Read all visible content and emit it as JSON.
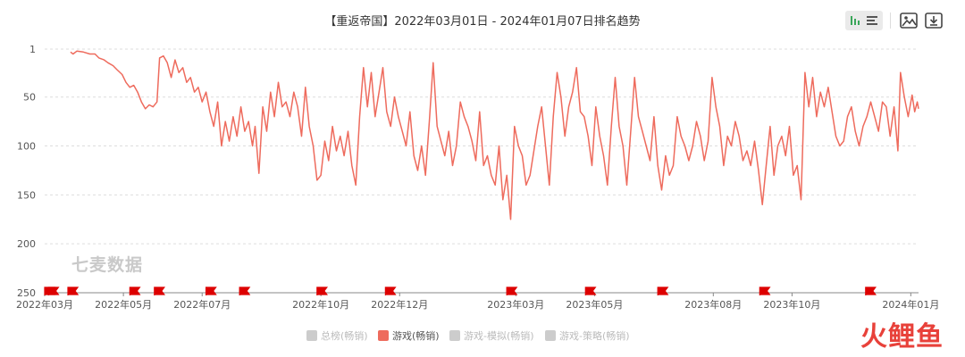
{
  "toolbar": {
    "bar_line_toggle": "chart-type-toggle-icon",
    "save_image": "image-icon",
    "download": "download-icon"
  },
  "watermark": "七麦数据",
  "brand": {
    "part1": "火",
    "part2": "鲤鱼"
  },
  "legend": [
    {
      "label": "总榜(畅销)",
      "active": false
    },
    {
      "label": "游戏(畅销)",
      "active": true
    },
    {
      "label": "游戏-模拟(畅销)",
      "active": false
    },
    {
      "label": "游戏-策略(畅销)",
      "active": false
    }
  ],
  "colors": {
    "series": "#ee6b5d",
    "event_flag": "#dd0000",
    "grid": "#dddddd",
    "axis": "#666666"
  },
  "chart_data": {
    "type": "line",
    "title": "【重返帝国】2022年03月01日 - 2024年01月07日排名趋势",
    "x_start": "2022-03-01",
    "x_end": "2024-01-07",
    "y_reversed": true,
    "ylim": [
      1,
      250
    ],
    "yticks": [
      1,
      50,
      100,
      150,
      200,
      250
    ],
    "xticks": [
      {
        "date": "2022-03-01",
        "label": "2022年03月"
      },
      {
        "date": "2022-05-01",
        "label": "2022年05月"
      },
      {
        "date": "2022-07-01",
        "label": "2022年07月"
      },
      {
        "date": "2022-10-01",
        "label": "2022年10月"
      },
      {
        "date": "2022-12-01",
        "label": "2022年12月"
      },
      {
        "date": "2023-03-01",
        "label": "2023年03月"
      },
      {
        "date": "2023-05-01",
        "label": "2023年05月"
      },
      {
        "date": "2023-08-01",
        "label": "2023年08月"
      },
      {
        "date": "2023-10-01",
        "label": "2023年10月"
      },
      {
        "date": "2024-01-01",
        "label": "2024年01月"
      }
    ],
    "grid": "horizontal-dashed",
    "event_flags": [
      "2022-03-01",
      "2022-03-04",
      "2022-03-19",
      "2022-05-06",
      "2022-05-25",
      "2022-07-04",
      "2022-07-30",
      "2022-09-28",
      "2022-11-20",
      "2023-02-22",
      "2023-04-24",
      "2023-06-19",
      "2023-09-06",
      "2023-11-27"
    ],
    "series": [
      {
        "name": "游戏(畅销)",
        "points": [
          [
            "2022-03-21",
            4
          ],
          [
            "2022-03-23",
            6
          ],
          [
            "2022-03-26",
            3
          ],
          [
            "2022-03-31",
            4
          ],
          [
            "2022-04-05",
            6
          ],
          [
            "2022-04-09",
            6
          ],
          [
            "2022-04-12",
            10
          ],
          [
            "2022-04-16",
            12
          ],
          [
            "2022-04-19",
            15
          ],
          [
            "2022-04-23",
            18
          ],
          [
            "2022-04-26",
            22
          ],
          [
            "2022-04-30",
            27
          ],
          [
            "2022-05-03",
            35
          ],
          [
            "2022-05-06",
            40
          ],
          [
            "2022-05-09",
            38
          ],
          [
            "2022-05-12",
            45
          ],
          [
            "2022-05-15",
            55
          ],
          [
            "2022-05-18",
            62
          ],
          [
            "2022-05-21",
            58
          ],
          [
            "2022-05-24",
            60
          ],
          [
            "2022-05-27",
            55
          ],
          [
            "2022-05-29",
            10
          ],
          [
            "2022-06-01",
            8
          ],
          [
            "2022-06-04",
            15
          ],
          [
            "2022-06-07",
            30
          ],
          [
            "2022-06-10",
            12
          ],
          [
            "2022-06-13",
            25
          ],
          [
            "2022-06-16",
            20
          ],
          [
            "2022-06-19",
            35
          ],
          [
            "2022-06-22",
            30
          ],
          [
            "2022-06-25",
            45
          ],
          [
            "2022-06-28",
            40
          ],
          [
            "2022-07-01",
            55
          ],
          [
            "2022-07-04",
            45
          ],
          [
            "2022-07-07",
            65
          ],
          [
            "2022-07-10",
            80
          ],
          [
            "2022-07-13",
            55
          ],
          [
            "2022-07-16",
            100
          ],
          [
            "2022-07-19",
            75
          ],
          [
            "2022-07-22",
            95
          ],
          [
            "2022-07-25",
            70
          ],
          [
            "2022-07-28",
            90
          ],
          [
            "2022-07-31",
            60
          ],
          [
            "2022-08-03",
            85
          ],
          [
            "2022-08-06",
            75
          ],
          [
            "2022-08-09",
            100
          ],
          [
            "2022-08-11",
            80
          ],
          [
            "2022-08-14",
            128
          ],
          [
            "2022-08-17",
            60
          ],
          [
            "2022-08-20",
            85
          ],
          [
            "2022-08-23",
            45
          ],
          [
            "2022-08-26",
            70
          ],
          [
            "2022-08-29",
            35
          ],
          [
            "2022-09-01",
            60
          ],
          [
            "2022-09-04",
            55
          ],
          [
            "2022-09-07",
            70
          ],
          [
            "2022-09-10",
            45
          ],
          [
            "2022-09-13",
            60
          ],
          [
            "2022-09-16",
            90
          ],
          [
            "2022-09-19",
            40
          ],
          [
            "2022-09-22",
            80
          ],
          [
            "2022-09-25",
            100
          ],
          [
            "2022-09-28",
            135
          ],
          [
            "2022-10-01",
            130
          ],
          [
            "2022-10-04",
            95
          ],
          [
            "2022-10-07",
            115
          ],
          [
            "2022-10-10",
            80
          ],
          [
            "2022-10-13",
            105
          ],
          [
            "2022-10-16",
            90
          ],
          [
            "2022-10-19",
            110
          ],
          [
            "2022-10-22",
            85
          ],
          [
            "2022-10-25",
            120
          ],
          [
            "2022-10-28",
            140
          ],
          [
            "2022-10-31",
            70
          ],
          [
            "2022-11-03",
            20
          ],
          [
            "2022-11-06",
            60
          ],
          [
            "2022-11-09",
            25
          ],
          [
            "2022-11-12",
            70
          ],
          [
            "2022-11-15",
            45
          ],
          [
            "2022-11-18",
            20
          ],
          [
            "2022-11-21",
            65
          ],
          [
            "2022-11-24",
            80
          ],
          [
            "2022-11-27",
            50
          ],
          [
            "2022-11-30",
            70
          ],
          [
            "2022-12-03",
            85
          ],
          [
            "2022-12-06",
            100
          ],
          [
            "2022-12-09",
            65
          ],
          [
            "2022-12-12",
            110
          ],
          [
            "2022-12-15",
            125
          ],
          [
            "2022-12-18",
            100
          ],
          [
            "2022-12-21",
            130
          ],
          [
            "2022-12-24",
            75
          ],
          [
            "2022-12-27",
            15
          ],
          [
            "2022-12-30",
            80
          ],
          [
            "2023-01-02",
            95
          ],
          [
            "2023-01-05",
            110
          ],
          [
            "2023-01-08",
            85
          ],
          [
            "2023-01-11",
            120
          ],
          [
            "2023-01-14",
            100
          ],
          [
            "2023-01-17",
            55
          ],
          [
            "2023-01-20",
            70
          ],
          [
            "2023-01-23",
            80
          ],
          [
            "2023-01-26",
            95
          ],
          [
            "2023-01-29",
            115
          ],
          [
            "2023-02-01",
            65
          ],
          [
            "2023-02-04",
            120
          ],
          [
            "2023-02-07",
            110
          ],
          [
            "2023-02-10",
            130
          ],
          [
            "2023-02-13",
            140
          ],
          [
            "2023-02-16",
            100
          ],
          [
            "2023-02-19",
            155
          ],
          [
            "2023-02-22",
            130
          ],
          [
            "2023-02-25",
            175
          ],
          [
            "2023-02-28",
            80
          ],
          [
            "2023-03-03",
            100
          ],
          [
            "2023-03-06",
            110
          ],
          [
            "2023-03-09",
            140
          ],
          [
            "2023-03-12",
            130
          ],
          [
            "2023-03-15",
            105
          ],
          [
            "2023-03-18",
            80
          ],
          [
            "2023-03-21",
            60
          ],
          [
            "2023-03-24",
            100
          ],
          [
            "2023-03-27",
            140
          ],
          [
            "2023-03-30",
            70
          ],
          [
            "2023-04-02",
            25
          ],
          [
            "2023-04-05",
            50
          ],
          [
            "2023-04-08",
            90
          ],
          [
            "2023-04-11",
            60
          ],
          [
            "2023-04-14",
            45
          ],
          [
            "2023-04-17",
            20
          ],
          [
            "2023-04-20",
            65
          ],
          [
            "2023-04-23",
            70
          ],
          [
            "2023-04-26",
            90
          ],
          [
            "2023-04-29",
            120
          ],
          [
            "2023-05-02",
            60
          ],
          [
            "2023-05-05",
            90
          ],
          [
            "2023-05-08",
            110
          ],
          [
            "2023-05-11",
            140
          ],
          [
            "2023-05-14",
            80
          ],
          [
            "2023-05-17",
            30
          ],
          [
            "2023-05-20",
            80
          ],
          [
            "2023-05-23",
            100
          ],
          [
            "2023-05-26",
            140
          ],
          [
            "2023-05-29",
            85
          ],
          [
            "2023-06-01",
            30
          ],
          [
            "2023-06-04",
            70
          ],
          [
            "2023-06-07",
            85
          ],
          [
            "2023-06-10",
            100
          ],
          [
            "2023-06-13",
            115
          ],
          [
            "2023-06-16",
            70
          ],
          [
            "2023-06-19",
            120
          ],
          [
            "2023-06-22",
            145
          ],
          [
            "2023-06-25",
            110
          ],
          [
            "2023-06-28",
            130
          ],
          [
            "2023-07-01",
            120
          ],
          [
            "2023-07-04",
            70
          ],
          [
            "2023-07-07",
            90
          ],
          [
            "2023-07-10",
            100
          ],
          [
            "2023-07-13",
            115
          ],
          [
            "2023-07-16",
            100
          ],
          [
            "2023-07-19",
            75
          ],
          [
            "2023-07-22",
            90
          ],
          [
            "2023-07-25",
            115
          ],
          [
            "2023-07-28",
            95
          ],
          [
            "2023-07-31",
            30
          ],
          [
            "2023-08-03",
            60
          ],
          [
            "2023-08-06",
            80
          ],
          [
            "2023-08-09",
            120
          ],
          [
            "2023-08-12",
            90
          ],
          [
            "2023-08-15",
            100
          ],
          [
            "2023-08-18",
            75
          ],
          [
            "2023-08-21",
            90
          ],
          [
            "2023-08-24",
            115
          ],
          [
            "2023-08-27",
            105
          ],
          [
            "2023-08-30",
            120
          ],
          [
            "2023-09-02",
            95
          ],
          [
            "2023-09-05",
            125
          ],
          [
            "2023-09-08",
            160
          ],
          [
            "2023-09-11",
            120
          ],
          [
            "2023-09-14",
            80
          ],
          [
            "2023-09-17",
            130
          ],
          [
            "2023-09-20",
            100
          ],
          [
            "2023-09-23",
            90
          ],
          [
            "2023-09-26",
            110
          ],
          [
            "2023-09-29",
            80
          ],
          [
            "2023-10-02",
            130
          ],
          [
            "2023-10-05",
            120
          ],
          [
            "2023-10-08",
            155
          ],
          [
            "2023-10-11",
            25
          ],
          [
            "2023-10-14",
            60
          ],
          [
            "2023-10-17",
            30
          ],
          [
            "2023-10-20",
            70
          ],
          [
            "2023-10-23",
            45
          ],
          [
            "2023-10-26",
            60
          ],
          [
            "2023-10-29",
            40
          ],
          [
            "2023-11-01",
            65
          ],
          [
            "2023-11-04",
            90
          ],
          [
            "2023-11-07",
            100
          ],
          [
            "2023-11-10",
            95
          ],
          [
            "2023-11-13",
            70
          ],
          [
            "2023-11-16",
            60
          ],
          [
            "2023-11-19",
            85
          ],
          [
            "2023-11-22",
            100
          ],
          [
            "2023-11-25",
            80
          ],
          [
            "2023-11-28",
            70
          ],
          [
            "2023-12-01",
            55
          ],
          [
            "2023-12-04",
            70
          ],
          [
            "2023-12-07",
            85
          ],
          [
            "2023-12-10",
            55
          ],
          [
            "2023-12-13",
            60
          ],
          [
            "2023-12-16",
            90
          ],
          [
            "2023-12-19",
            60
          ],
          [
            "2023-12-22",
            105
          ],
          [
            "2023-12-24",
            25
          ],
          [
            "2023-12-27",
            50
          ],
          [
            "2023-12-30",
            70
          ],
          [
            "2024-01-02",
            48
          ],
          [
            "2024-01-04",
            65
          ],
          [
            "2024-01-06",
            55
          ],
          [
            "2024-01-07",
            62
          ]
        ]
      }
    ]
  }
}
